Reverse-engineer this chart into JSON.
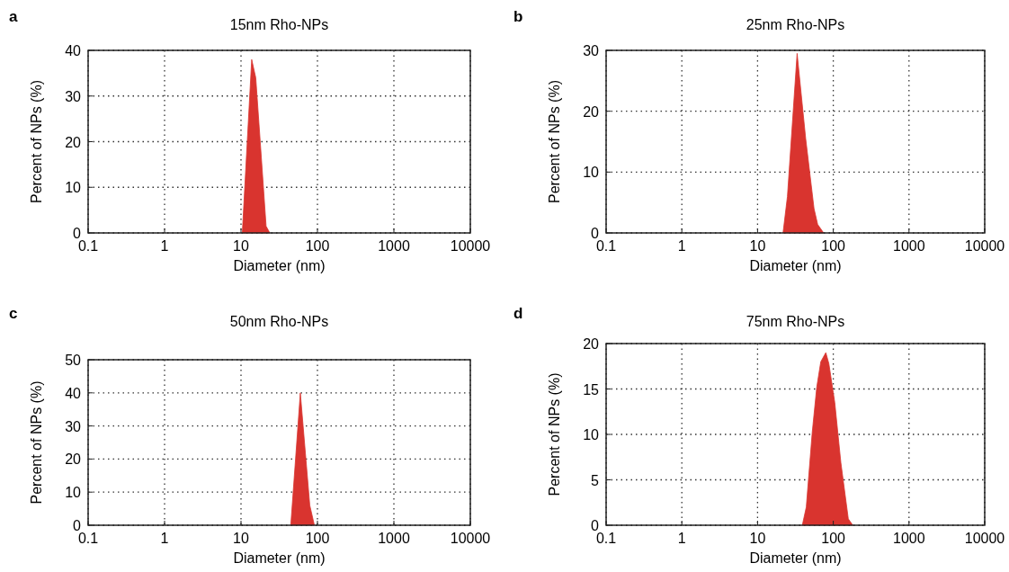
{
  "chart_data": [
    {
      "type": "area",
      "title": "15nm Rho-NPs",
      "annotations": [
        "a"
      ],
      "xlabel": "Diameter (nm)",
      "ylabel": "Percent of NPs (%)",
      "log": "x",
      "grid": true,
      "color": "#d9342f",
      "x": [
        10.4,
        13.8,
        15.6,
        21.3,
        23.8
      ],
      "values": [
        0,
        38,
        34,
        1.5,
        0
      ],
      "xlim": [
        0.1,
        10000
      ],
      "xticks": [
        0.1,
        1,
        10,
        100,
        1000,
        10000
      ],
      "ylim": [
        0,
        40
      ],
      "yticks": [
        0,
        10,
        20,
        30,
        40
      ]
    },
    {
      "type": "area",
      "title": "25nm Rho-NPs",
      "annotations": [
        "b"
      ],
      "xlabel": "Diameter (nm)",
      "ylabel": "Percent of NPs (%)",
      "log": "x",
      "grid": true,
      "color": "#d9342f",
      "x": [
        21.7,
        24.8,
        33.3,
        43.2,
        55.7,
        62.2,
        74.6
      ],
      "values": [
        0,
        6,
        29.5,
        15.5,
        4,
        1.4,
        0
      ],
      "xlim": [
        0.1,
        10000
      ],
      "xticks": [
        0.1,
        1,
        10,
        100,
        1000,
        10000
      ],
      "ylim": [
        0,
        30
      ],
      "yticks": [
        0,
        10,
        20,
        30
      ]
    },
    {
      "type": "area",
      "title": "50nm Rho-NPs",
      "annotations": [
        "c"
      ],
      "xlabel": "Diameter (nm)",
      "ylabel": "Percent of NPs (%)",
      "log": "x",
      "grid": true,
      "color": "#d9342f",
      "x": [
        44.8,
        59.7,
        79.4,
        91.2
      ],
      "values": [
        0,
        40,
        6,
        0
      ],
      "xlim": [
        0.1,
        10000
      ],
      "xticks": [
        0.1,
        1,
        10,
        100,
        1000,
        10000
      ],
      "ylim": [
        0,
        50
      ],
      "yticks": [
        0,
        10,
        20,
        30,
        40,
        50
      ]
    },
    {
      "type": "area",
      "title": "75nm Rho-NPs",
      "annotations": [
        "d"
      ],
      "xlabel": "Diameter (nm)",
      "ylabel": "Percent of NPs (%)",
      "log": "x",
      "grid": true,
      "color": "#d9342f",
      "x": [
        39,
        44,
        52.7,
        60.5,
        68.4,
        79.7,
        87.4,
        104.7,
        125.9,
        158,
        181
      ],
      "values": [
        0,
        2,
        10.2,
        15.2,
        18,
        19,
        17.8,
        13.5,
        6.9,
        0.7,
        0
      ],
      "xlim": [
        0.1,
        10000
      ],
      "xticks": [
        0.1,
        1,
        10,
        100,
        1000,
        10000
      ],
      "ylim": [
        0,
        20
      ],
      "yticks": [
        0,
        5,
        10,
        15,
        20
      ]
    }
  ]
}
